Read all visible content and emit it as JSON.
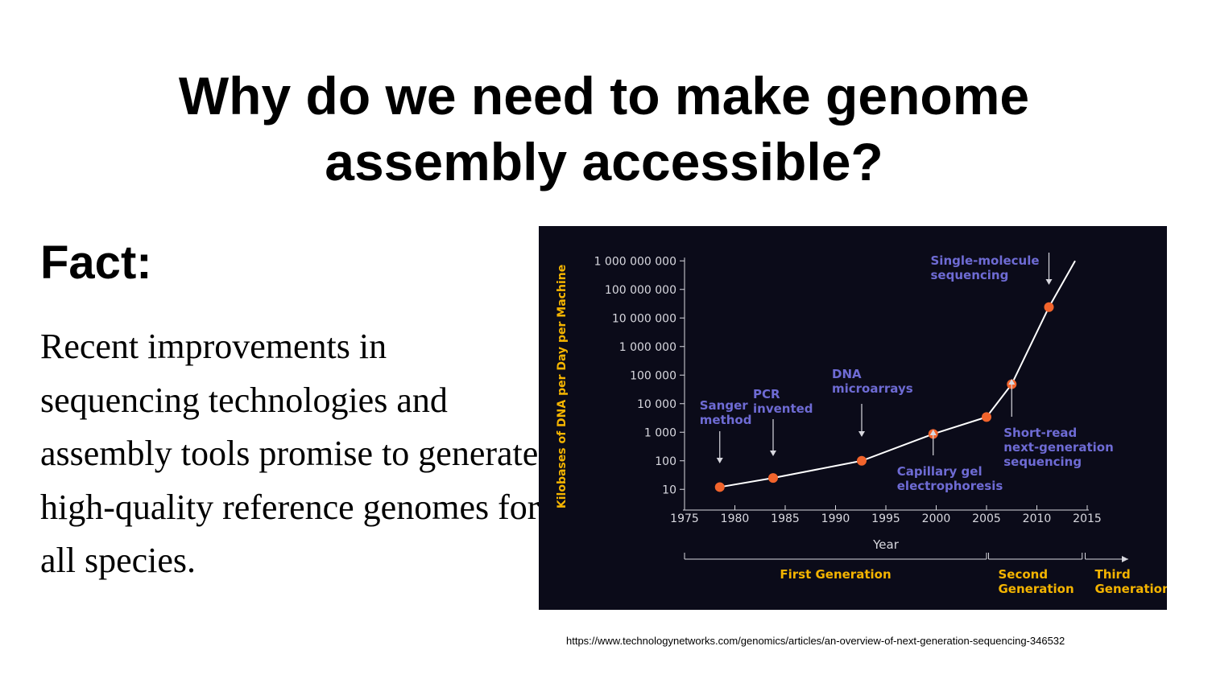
{
  "slide": {
    "title_line1": "Why do we need to make genome",
    "title_line2": "assembly accessible?",
    "fact_heading": "Fact:",
    "fact_text": "Recent improvements in sequencing technologies and assembly tools promise to generate high-quality reference genomes for all species.",
    "source_url": "https://www.technologynetworks.com/genomics/articles/an-overview-of-next-generation-sequencing-346532"
  },
  "chart_data": {
    "type": "line",
    "title": "",
    "xlabel": "Year",
    "ylabel": "Kilobases of DNA per Day per Machine",
    "y_scale": "log",
    "xlim": [
      1975,
      2015
    ],
    "ylim_log10": [
      0.5,
      9
    ],
    "x_ticks": [
      1975,
      1980,
      1985,
      1990,
      1995,
      2000,
      2005,
      2010,
      2015
    ],
    "y_ticks": [
      {
        "exp": 1,
        "label": "10"
      },
      {
        "exp": 2,
        "label": "100"
      },
      {
        "exp": 3,
        "label": "1 000"
      },
      {
        "exp": 4,
        "label": "10 000"
      },
      {
        "exp": 5,
        "label": "100 000"
      },
      {
        "exp": 6,
        "label": "1 000 000"
      },
      {
        "exp": 7,
        "label": "10 000 000"
      },
      {
        "exp": 8,
        "label": "100 000 000"
      },
      {
        "exp": 9,
        "label": "1 000 000 000"
      }
    ],
    "points": [
      {
        "x": 1978.5,
        "y": 12
      },
      {
        "x": 1983.8,
        "y": 25
      },
      {
        "x": 1992.6,
        "y": 100
      },
      {
        "x": 1999.7,
        "y": 870
      },
      {
        "x": 2005.0,
        "y": 3400
      },
      {
        "x": 2007.5,
        "y": 48000
      },
      {
        "x": 2011.2,
        "y": 24000000
      }
    ],
    "line_end": {
      "x": 2013.8,
      "y": 1000000000
    },
    "annotations": [
      {
        "lines": [
          "Sanger",
          "method"
        ],
        "x": 1978.5,
        "y": 12,
        "arrow": "down"
      },
      {
        "lines": [
          "PCR",
          "invented"
        ],
        "x": 1983.8,
        "y": 25,
        "arrow": "down"
      },
      {
        "lines": [
          "DNA",
          "microarrays"
        ],
        "x": 1992.6,
        "y": 100,
        "arrow": "down"
      },
      {
        "lines": [
          "Capillary gel",
          "electrophoresis"
        ],
        "x": 1999.7,
        "y": 870,
        "arrow": "up"
      },
      {
        "lines": [
          "Short-read",
          "next-generation",
          "sequencing"
        ],
        "x": 2007.5,
        "y": 48000,
        "arrow": "up"
      },
      {
        "lines": [
          "Single-molecule",
          "sequencing"
        ],
        "x": 2011.2,
        "y": 24000000,
        "arrow": "down"
      }
    ],
    "generations": [
      {
        "lines": [
          "First Generation"
        ],
        "start": 1975,
        "end": 2005.0
      },
      {
        "lines": [
          "Second",
          "Generation"
        ],
        "start": 2005.2,
        "end": 2014.5
      },
      {
        "lines": [
          "Third",
          "Generation"
        ],
        "start": 2014.8,
        "end": 2019.5,
        "arrow": true
      }
    ],
    "colors": {
      "background": "#0b0b19",
      "line": "#ffffff",
      "point": "#f2642c",
      "annotation": "#6e6bd4",
      "generation": "#f4b400",
      "axis": "#d8d8df"
    }
  }
}
